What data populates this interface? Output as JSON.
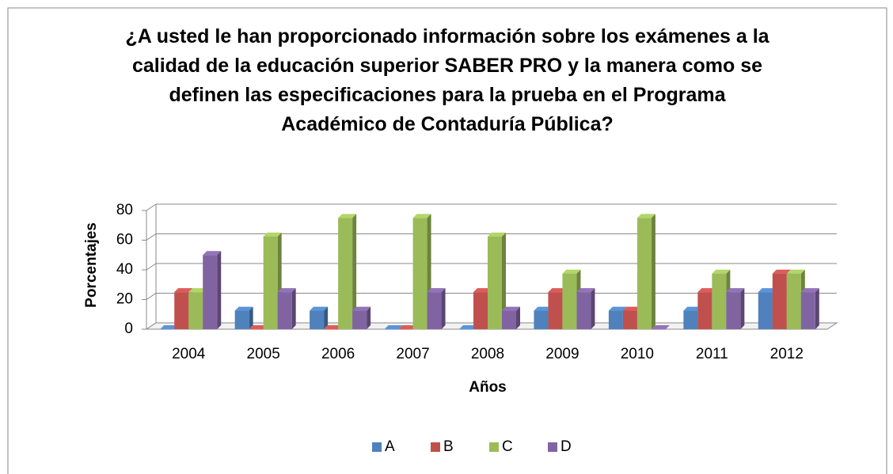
{
  "chart_data": {
    "type": "bar",
    "title": "¿A usted le han proporcionado información sobre los exámenes a la calidad de la educación superior SABER PRO y la manera como se definen las especificaciones para la prueba en el Programa Académico de Contaduría Pública?",
    "x_label": "Años",
    "y_label": "Porcentajes",
    "categories": [
      "2004",
      "2005",
      "2006",
      "2007",
      "2008",
      "2009",
      "2010",
      "2011",
      "2012"
    ],
    "series": [
      {
        "name": "A",
        "color": "#4f81bd",
        "values": [
          0,
          12.5,
          12.5,
          0,
          0,
          12.5,
          12.5,
          12.5,
          25
        ]
      },
      {
        "name": "B",
        "color": "#c0504d",
        "values": [
          25,
          0,
          0,
          0,
          25,
          25,
          12.5,
          25,
          37.5
        ]
      },
      {
        "name": "C",
        "color": "#9bbb59",
        "values": [
          25,
          62.5,
          75,
          75,
          62.5,
          37.5,
          75,
          37.5,
          37.5
        ]
      },
      {
        "name": "D",
        "color": "#8064a2",
        "values": [
          50,
          25,
          12.5,
          25,
          12.5,
          25,
          0,
          25,
          25
        ]
      }
    ],
    "ylim": [
      0,
      80
    ],
    "yticks": [
      0,
      20,
      40,
      60,
      80
    ],
    "grid": true,
    "legend": "bottom"
  }
}
